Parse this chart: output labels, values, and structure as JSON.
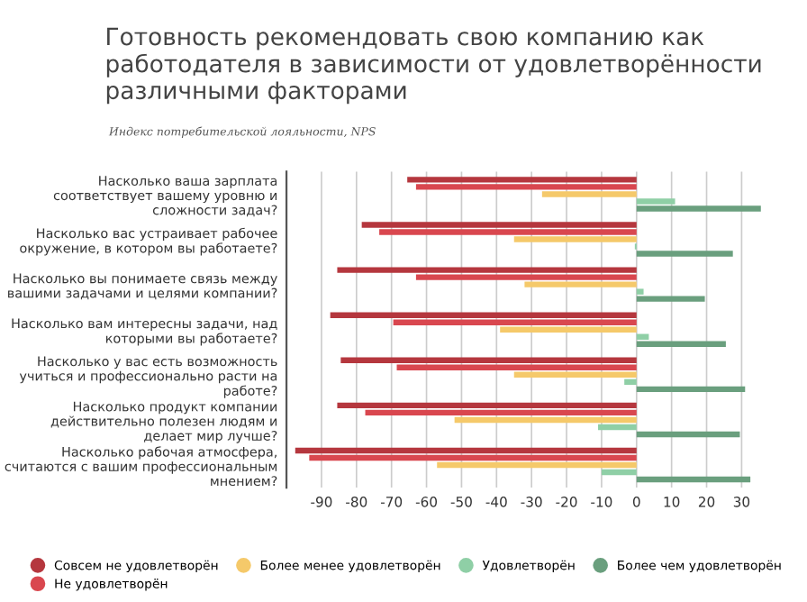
{
  "chart_data": {
    "type": "bar",
    "orientation": "horizontal",
    "title": "Готовность рекомендовать свою компанию как работодателя в зависимости от удовлетворённости различными факторами",
    "subtitle": "Индекс потребительской лояльности, NPS",
    "categories": [
      "Насколько ваша зарплата соответствует вашему уровню и сложности задач?",
      "Насколько вас устраивает рабочее окружение, в котором вы работаете?",
      "Насколько вы понимаете связь между вашими задачами и целями компании?",
      "Насколько вам интересны задачи, над которыми вы работаете?",
      "Насколько у вас есть возможность учиться и профессионально расти на работе?",
      "Насколько продукт компании действительно полезен людям и делает мир лучше?",
      "Насколько рабочая атмосфера, считаются с вашим профессиональным мнением?"
    ],
    "series": [
      {
        "name": "Совсем не удовлетворён",
        "color": "#b5373e",
        "values": [
          -65.5,
          -78.5,
          -85.5,
          -87.5,
          -84.5,
          -85.5,
          -97.5
        ]
      },
      {
        "name": "Не удовлетворён",
        "color": "#d9474f",
        "values": [
          -63,
          -73.5,
          -63,
          -69.5,
          -68.5,
          -77.5,
          -93.5
        ]
      },
      {
        "name": "Более менее удовлетворён",
        "color": "#f5c96a",
        "values": [
          -27,
          -35,
          -32,
          -39,
          -35,
          -52,
          -57
        ]
      },
      {
        "name": "Удовлетворён",
        "color": "#8fcfa6",
        "values": [
          11,
          -0.5,
          2,
          3.5,
          -3.5,
          -11,
          -10
        ]
      },
      {
        "name": "Более чем удовлетворён",
        "color": "#6a9f7e",
        "values": [
          35.5,
          27.5,
          19.5,
          25.5,
          31,
          29.5,
          32.5
        ]
      }
    ],
    "xlim": [
      -100,
      36
    ],
    "xticks": [
      -90,
      -80,
      -70,
      -60,
      -50,
      -40,
      -30,
      -20,
      -10,
      0,
      10,
      20,
      30
    ],
    "grid": "x",
    "legend": "bottom"
  }
}
